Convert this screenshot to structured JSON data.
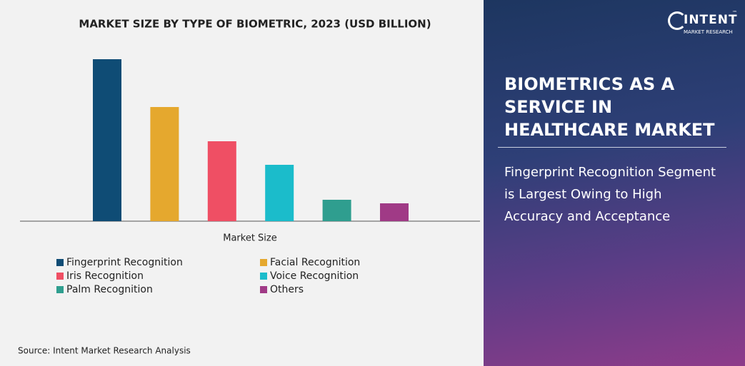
{
  "chart_data": {
    "type": "bar",
    "title": "MARKET SIZE BY TYPE OF BIOMETRIC, 2023  (USD BILLION)",
    "categories": [
      "Market Size"
    ],
    "series": [
      {
        "name": "Fingerprint Recognition",
        "color": "#0f4c75",
        "values": [
          2.27
        ]
      },
      {
        "name": "Facial Recognition",
        "color": "#e5a82e",
        "values": [
          1.6
        ]
      },
      {
        "name": "Iris Recognition",
        "color": "#ef4f64",
        "values": [
          1.12
        ]
      },
      {
        "name": "Voice Recognition",
        "color": "#1bbccb",
        "values": [
          0.79
        ]
      },
      {
        "name": "Palm Recognition",
        "color": "#2f9e8f",
        "values": [
          0.3
        ]
      },
      {
        "name": "Others",
        "color": "#a03a86",
        "values": [
          0.25
        ]
      }
    ]
  },
  "source": "Source: Intent Market Research Analysis",
  "logo": {
    "name": "INTENT",
    "tagline": "MARKET RESEARCH",
    "mark": "™"
  },
  "panel": {
    "heading": "BIOMETRICS AS A SERVICE IN HEALTHCARE MARKET",
    "summary": "Fingerprint Recognition Segment is Largest Owing to High Accuracy and Acceptance"
  }
}
